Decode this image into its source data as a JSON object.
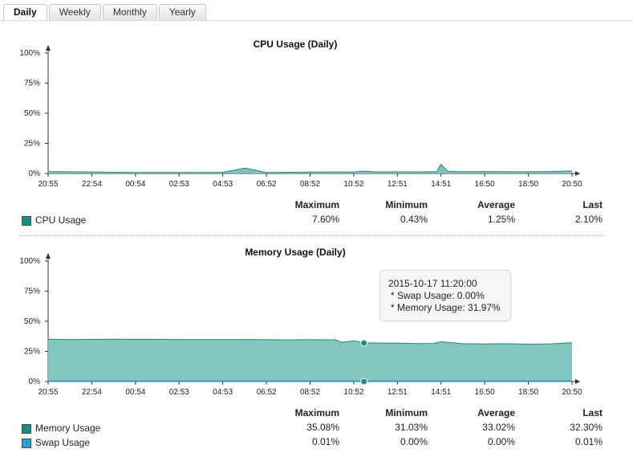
{
  "tabs": [
    "Daily",
    "Weekly",
    "Monthly",
    "Yearly"
  ],
  "active_tab": 0,
  "colors": {
    "cpu": "#1f8a7e",
    "memory_fill": "#84c6bf",
    "memory_line": "#1f8a7e",
    "swap": "#2a9fd0",
    "axis": "#333333"
  },
  "stats_headers": [
    "Maximum",
    "Minimum",
    "Average",
    "Last"
  ],
  "cpu": {
    "legend": [
      {
        "name": "CPU Usage",
        "color": "#1f8a7e",
        "stats": [
          "7.60%",
          "0.43%",
          "1.25%",
          "2.10%"
        ]
      }
    ]
  },
  "memory": {
    "legend": [
      {
        "name": "Memory Usage",
        "color": "#1f8a7e",
        "stats": [
          "35.08%",
          "31.03%",
          "33.02%",
          "32.30%"
        ]
      },
      {
        "name": "Swap Usage",
        "color": "#2a9fd0",
        "stats": [
          "0.01%",
          "0.00%",
          "0.00%",
          "0.01%"
        ]
      }
    ],
    "tooltip": {
      "time": "2015-10-17 11:20:00",
      "swap": "* Swap Usage: 0.00%",
      "memory": "* Memory Usage: 31.97%"
    }
  },
  "chart_data": [
    {
      "type": "area",
      "title": "CPU Usage (Daily)",
      "xlabel": "",
      "ylabel": "",
      "ylim": [
        0,
        100
      ],
      "yticks": [
        "0%",
        "25%",
        "50%",
        "75%",
        "100%"
      ],
      "xticks": [
        "20:55",
        "22:54",
        "00:54",
        "02:53",
        "04:53",
        "06:52",
        "08:52",
        "10:52",
        "12:51",
        "14:51",
        "16:50",
        "18:50",
        "20:50"
      ],
      "x": [
        "20:55",
        "21:55",
        "22:54",
        "23:54",
        "00:54",
        "01:54",
        "02:53",
        "03:53",
        "04:53",
        "05:55",
        "06:52",
        "07:52",
        "08:52",
        "09:52",
        "10:52",
        "11:20",
        "11:52",
        "12:51",
        "13:51",
        "14:40",
        "14:51",
        "15:10",
        "15:51",
        "16:50",
        "17:50",
        "18:50",
        "19:50",
        "20:50"
      ],
      "series": [
        {
          "name": "CPU Usage",
          "values": [
            1.5,
            1.4,
            1.3,
            1.0,
            0.9,
            0.8,
            0.9,
            0.9,
            1.0,
            4.5,
            0.9,
            1.0,
            1.1,
            1.3,
            1.2,
            2.0,
            1.3,
            1.4,
            1.3,
            1.6,
            7.6,
            1.8,
            1.4,
            1.6,
            1.5,
            1.4,
            1.6,
            2.1
          ]
        }
      ],
      "grid": false
    },
    {
      "type": "area",
      "title": "Memory Usage (Daily)",
      "xlabel": "",
      "ylabel": "",
      "ylim": [
        0,
        100
      ],
      "yticks": [
        "0%",
        "25%",
        "50%",
        "75%",
        "100%"
      ],
      "xticks": [
        "20:55",
        "22:54",
        "00:54",
        "02:53",
        "04:53",
        "06:52",
        "08:52",
        "10:52",
        "12:51",
        "14:51",
        "16:50",
        "18:50",
        "20:50"
      ],
      "x": [
        "20:55",
        "21:55",
        "22:54",
        "23:54",
        "00:54",
        "01:54",
        "02:53",
        "03:53",
        "04:53",
        "05:53",
        "06:52",
        "07:52",
        "08:52",
        "09:52",
        "10:00",
        "10:20",
        "10:52",
        "11:20",
        "11:52",
        "12:51",
        "13:51",
        "14:30",
        "14:51",
        "15:51",
        "16:50",
        "17:50",
        "18:50",
        "19:50",
        "20:50"
      ],
      "series": [
        {
          "name": "Memory Usage",
          "values": [
            35.0,
            34.9,
            35.0,
            35.1,
            35.0,
            35.0,
            34.9,
            34.9,
            34.9,
            34.8,
            34.7,
            34.6,
            34.7,
            34.6,
            34.8,
            32.5,
            33.8,
            31.97,
            32.0,
            31.8,
            31.5,
            31.6,
            33.0,
            31.4,
            31.2,
            31.4,
            31.0,
            31.3,
            32.3
          ]
        },
        {
          "name": "Swap Usage",
          "values": [
            0.01,
            0.01,
            0.01,
            0.01,
            0.01,
            0.01,
            0.01,
            0.01,
            0.01,
            0.01,
            0.01,
            0.01,
            0.01,
            0.01,
            0.01,
            0.0,
            0.0,
            0.0,
            0.0,
            0.0,
            0.0,
            0.0,
            0.0,
            0.0,
            0.0,
            0.0,
            0.0,
            0.01,
            0.01
          ]
        }
      ],
      "highlight_x": "11:20",
      "grid": false
    }
  ]
}
